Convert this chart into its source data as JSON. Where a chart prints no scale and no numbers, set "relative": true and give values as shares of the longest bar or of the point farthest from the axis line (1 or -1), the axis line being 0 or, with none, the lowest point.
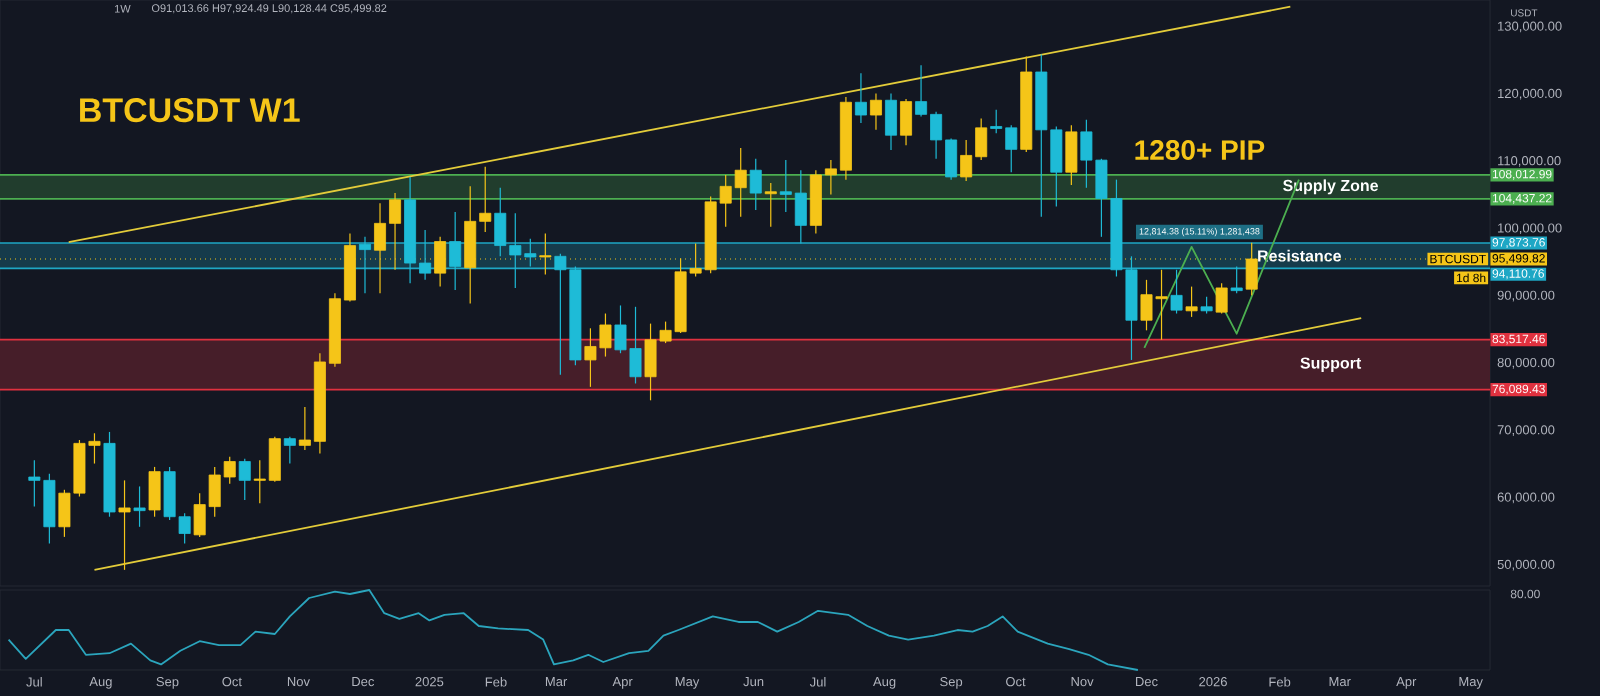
{
  "chart_data": [
    {
      "type": "candlestick",
      "title": "BTCUSDT W1",
      "x": [
        "2024-07-01",
        "2024-07-08",
        "2024-07-15",
        "2024-07-22",
        "2024-07-29",
        "2024-08-05",
        "2024-08-12",
        "2024-08-19",
        "2024-08-26",
        "2024-09-02",
        "2024-09-09",
        "2024-09-16",
        "2024-09-23",
        "2024-09-30",
        "2024-10-07",
        "2024-10-14",
        "2024-10-21",
        "2024-10-28",
        "2024-11-04",
        "2024-11-11",
        "2024-11-18",
        "2024-11-25",
        "2024-12-02",
        "2024-12-09",
        "2024-12-16",
        "2024-12-23",
        "2024-12-30",
        "2025-01-06",
        "2025-01-13",
        "2025-01-20",
        "2025-01-27",
        "2025-02-03",
        "2025-02-10",
        "2025-02-17",
        "2025-02-24",
        "2025-03-03",
        "2025-03-10",
        "2025-03-17",
        "2025-03-24",
        "2025-03-31",
        "2025-04-07",
        "2025-04-14",
        "2025-04-21",
        "2025-04-28",
        "2025-05-05",
        "2025-05-12",
        "2025-05-19",
        "2025-05-26",
        "2025-06-02",
        "2025-06-09",
        "2025-06-16",
        "2025-06-23",
        "2025-06-30",
        "2025-07-07",
        "2025-07-14",
        "2025-07-21",
        "2025-07-28",
        "2025-08-04",
        "2025-08-11",
        "2025-08-18",
        "2025-08-25",
        "2025-09-01",
        "2025-09-08",
        "2025-09-15",
        "2025-09-22",
        "2025-09-29",
        "2025-10-06",
        "2025-10-13",
        "2025-10-20",
        "2025-10-27",
        "2025-11-03",
        "2025-11-10",
        "2025-11-17",
        "2025-11-24",
        "2025-12-01",
        "2025-12-08",
        "2025-12-15",
        "2025-12-22",
        "2025-12-29",
        "2026-01-05",
        "2026-01-12",
        "2026-01-19"
      ],
      "ohlc": [
        [
          63100,
          65600,
          58700,
          62600
        ],
        [
          62600,
          63600,
          53200,
          55700
        ],
        [
          55700,
          61200,
          54200,
          60700
        ],
        [
          60700,
          68600,
          60200,
          68100
        ],
        [
          67800,
          69600,
          65100,
          68400
        ],
        [
          68100,
          69800,
          57200,
          57900
        ],
        [
          57900,
          62600,
          49300,
          58500
        ],
        [
          58500,
          61700,
          55700,
          58100
        ],
        [
          58200,
          64600,
          57200,
          63900
        ],
        [
          63900,
          64600,
          56700,
          57200
        ],
        [
          57200,
          57700,
          53200,
          54700
        ],
        [
          54500,
          60700,
          54200,
          59000
        ],
        [
          58700,
          64600,
          57200,
          63400
        ],
        [
          63100,
          66100,
          62100,
          65400
        ],
        [
          65400,
          65800,
          59700,
          62600
        ],
        [
          62600,
          65600,
          59200,
          62800
        ],
        [
          62600,
          69100,
          62400,
          68800
        ],
        [
          68800,
          69100,
          65100,
          67800
        ],
        [
          67800,
          73500,
          67100,
          68600
        ],
        [
          68400,
          81500,
          66600,
          80200
        ],
        [
          80000,
          90400,
          79500,
          89600
        ],
        [
          89400,
          99300,
          89200,
          97500
        ],
        [
          97700,
          98800,
          90400,
          96900
        ],
        [
          96800,
          103800,
          90400,
          100800
        ],
        [
          100800,
          105300,
          93900,
          104300
        ],
        [
          104300,
          107700,
          91900,
          94900
        ],
        [
          94900,
          99800,
          92400,
          93400
        ],
        [
          93400,
          98800,
          91400,
          98100
        ],
        [
          98100,
          102500,
          90900,
          94400
        ],
        [
          94200,
          106300,
          88900,
          101100
        ],
        [
          101100,
          109200,
          99500,
          102300
        ],
        [
          102300,
          106100,
          95900,
          97500
        ],
        [
          97500,
          102300,
          91200,
          96100
        ],
        [
          96300,
          98500,
          94400,
          95800
        ],
        [
          95800,
          99300,
          93200,
          96000
        ],
        [
          95900,
          96300,
          78300,
          93900
        ],
        [
          93900,
          94400,
          79700,
          80500
        ],
        [
          80500,
          85200,
          76500,
          82500
        ],
        [
          82300,
          87400,
          81000,
          85700
        ],
        [
          85700,
          88600,
          81500,
          82000
        ],
        [
          82200,
          88400,
          77000,
          78000
        ],
        [
          78000,
          85900,
          74500,
          83500
        ],
        [
          83300,
          86200,
          83000,
          84900
        ],
        [
          84700,
          95600,
          84500,
          93600
        ],
        [
          93400,
          97800,
          92900,
          94100
        ],
        [
          93900,
          104800,
          93400,
          104000
        ],
        [
          103800,
          108000,
          100300,
          106300
        ],
        [
          106100,
          112000,
          101800,
          108700
        ],
        [
          108700,
          110400,
          102800,
          105300
        ],
        [
          105200,
          106800,
          100300,
          105500
        ],
        [
          105500,
          110200,
          102500,
          105100
        ],
        [
          105300,
          108700,
          97800,
          100500
        ],
        [
          100500,
          108700,
          99300,
          108000
        ],
        [
          108000,
          110200,
          105100,
          108900
        ],
        [
          108700,
          119600,
          107300,
          118800
        ],
        [
          118800,
          123100,
          115700,
          116900
        ],
        [
          116900,
          120100,
          114700,
          119100
        ],
        [
          119100,
          120100,
          111700,
          113900
        ],
        [
          113900,
          119300,
          112400,
          118900
        ],
        [
          118900,
          124300,
          116700,
          117000
        ],
        [
          117000,
          117400,
          110400,
          113200
        ],
        [
          113200,
          113400,
          107300,
          107700
        ],
        [
          107700,
          113200,
          107100,
          110900
        ],
        [
          110700,
          116400,
          110200,
          115000
        ],
        [
          115200,
          117700,
          114200,
          114900
        ],
        [
          115000,
          115400,
          108400,
          111800
        ],
        [
          111800,
          125600,
          111400,
          123300
        ],
        [
          123300,
          125900,
          101800,
          114700
        ],
        [
          114700,
          115200,
          103300,
          108400
        ],
        [
          108400,
          115400,
          106500,
          114400
        ],
        [
          114400,
          116200,
          106100,
          110200
        ],
        [
          110200,
          110400,
          98800,
          104500
        ],
        [
          104500,
          107300,
          92900,
          93900
        ],
        [
          93900,
          95900,
          80500,
          86400
        ],
        [
          86400,
          92400,
          84900,
          90200
        ],
        [
          89600,
          93900,
          83500,
          89900
        ],
        [
          90100,
          93900,
          87400,
          87900
        ],
        [
          87800,
          91400,
          86900,
          88400
        ],
        [
          88400,
          89900,
          87400,
          87800
        ],
        [
          87600,
          91900,
          87400,
          91200
        ],
        [
          91200,
          94400,
          90400,
          90800
        ],
        [
          91013.66,
          97924.49,
          90128.44,
          95499.82
        ]
      ],
      "colors": [
        "#1ebbd7",
        "#1ebbd7",
        "#f5c518",
        "#f5c518",
        "#f5c518",
        "#1ebbd7",
        "#f5c518",
        "#1ebbd7",
        "#f5c518",
        "#1ebbd7",
        "#1ebbd7",
        "#f5c518",
        "#f5c518",
        "#f5c518",
        "#1ebbd7",
        "#f5c518",
        "#f5c518",
        "#1ebbd7",
        "#f5c518",
        "#f5c518",
        "#f5c518",
        "#f5c518",
        "#1ebbd7",
        "#f5c518",
        "#f5c518",
        "#1ebbd7",
        "#1ebbd7",
        "#f5c518",
        "#1ebbd7",
        "#f5c518",
        "#f5c518",
        "#1ebbd7",
        "#1ebbd7",
        "#1ebbd7",
        "#f5c518",
        "#1ebbd7",
        "#1ebbd7",
        "#f5c518",
        "#f5c518",
        "#1ebbd7",
        "#1ebbd7",
        "#f5c518",
        "#f5c518",
        "#f5c518",
        "#f5c518",
        "#f5c518",
        "#f5c518",
        "#f5c518",
        "#1ebbd7",
        "#f5c518",
        "#1ebbd7",
        "#1ebbd7",
        "#f5c518",
        "#f5c518",
        "#f5c518",
        "#1ebbd7",
        "#f5c518",
        "#1ebbd7",
        "#f5c518",
        "#1ebbd7",
        "#1ebbd7",
        "#1ebbd7",
        "#f5c518",
        "#f5c518",
        "#1ebbd7",
        "#1ebbd7",
        "#f5c518",
        "#1ebbd7",
        "#1ebbd7",
        "#f5c518",
        "#1ebbd7",
        "#1ebbd7",
        "#1ebbd7",
        "#1ebbd7",
        "#f5c518",
        "#f5c518",
        "#1ebbd7",
        "#f5c518",
        "#1ebbd7",
        "#f5c518",
        "#1ebbd7",
        "#f5c518"
      ],
      "series": [
        {
          "type": "line",
          "color": "#e3cc3a",
          "x": [
            "2024-07-17",
            "2026-02-06"
          ],
          "values": [
            98000,
            133000
          ]
        },
        {
          "type": "line",
          "color": "#e3cc3a",
          "x": [
            "2024-07-29",
            "2026-03-11"
          ],
          "values": [
            49300,
            86700
          ]
        },
        {
          "type": "line",
          "color": "#4caf50",
          "x": [
            "2025-11-30",
            "2025-12-22",
            "2026-01-12",
            "2026-02-10"
          ],
          "values": [
            82300,
            97300,
            84400,
            107300
          ]
        }
      ],
      "bands": [
        {
          "axis": "y",
          "from": 104437.22,
          "to": 108012.99,
          "label": "Supply Zone",
          "color": "#213d2d"
        },
        {
          "axis": "y",
          "from": 94110.76,
          "to": 97873.76,
          "label": "Resistance",
          "color": "#163b4b"
        },
        {
          "axis": "y",
          "from": 76089.43,
          "to": 83517.46,
          "label": "Support",
          "color": "#461e29"
        }
      ],
      "ref_lines": [
        {
          "axis": "y",
          "value": 108012.99,
          "label": "108,012.99",
          "color": "#4caf50"
        },
        {
          "axis": "y",
          "value": 104437.22,
          "label": "104,437.22",
          "color": "#4caf50"
        },
        {
          "axis": "y",
          "value": 97873.76,
          "label": "97,873.76",
          "color": "#1ea7c5"
        },
        {
          "axis": "y",
          "value": 95499.82,
          "label": "95,499.82",
          "color": "#f5c518",
          "line_style": "dotted"
        },
        {
          "axis": "y",
          "value": 94110.76,
          "label": "94,110.76",
          "color": "#1ea7c5"
        },
        {
          "axis": "y",
          "value": 83517.46,
          "label": "83,517.46",
          "color": "#e0313f"
        },
        {
          "axis": "y",
          "value": 76089.43,
          "label": "76,089.43",
          "color": "#e0313f"
        }
      ],
      "annotations": [
        "1280+ PIP",
        "12,814.38 (15.11%) 1,281,438",
        "1d 8h",
        "1W",
        "O91,013.66 H97,924.49 L90,128.44 C95,499.82",
        "USDT",
        "BTCUSDT"
      ],
      "xlim": [
        "2024-06-15",
        "2026-05-10"
      ],
      "ylim": [
        46900,
        134000
      ],
      "yticks": [
        {
          "value": 50000,
          "label": "50,000.00"
        },
        {
          "value": 60000,
          "label": "60,000.00"
        },
        {
          "value": 70000,
          "label": "70,000.00"
        },
        {
          "value": 80000,
          "label": "80,000.00"
        },
        {
          "value": 90000,
          "label": "90,000.00"
        },
        {
          "value": 100000,
          "label": "100,000.00"
        },
        {
          "value": 110000,
          "label": "110,000.00"
        },
        {
          "value": 120000,
          "label": "120,000.00"
        },
        {
          "value": 130000,
          "label": "130,000.00"
        }
      ],
      "tick_labels": "y"
    },
    {
      "type": "line",
      "relative": true,
      "color": "#2ba5bd",
      "x": [
        "2024-06-19",
        "2024-06-27",
        "2024-07-11",
        "2024-07-17",
        "2024-07-25",
        "2024-08-05",
        "2024-08-15",
        "2024-08-24",
        "2024-08-29",
        "2024-09-07",
        "2024-09-16",
        "2024-09-25",
        "2024-10-05",
        "2024-10-12",
        "2024-10-21",
        "2024-10-28",
        "2024-11-06",
        "2024-11-18",
        "2024-11-25",
        "2024-12-04",
        "2024-12-11",
        "2024-12-18",
        "2024-12-27",
        "2025-01-01",
        "2025-01-08",
        "2025-01-17",
        "2025-01-24",
        "2025-02-02",
        "2025-02-16",
        "2025-02-23",
        "2025-02-28",
        "2025-03-09",
        "2025-03-16",
        "2025-03-23",
        "2025-04-04",
        "2025-04-13",
        "2025-04-20",
        "2025-04-27",
        "2025-05-13",
        "2025-05-25",
        "2025-06-03",
        "2025-06-12",
        "2025-06-22",
        "2025-07-01",
        "2025-07-15",
        "2025-07-24",
        "2025-08-03",
        "2025-08-12",
        "2025-08-24",
        "2025-09-04",
        "2025-09-11",
        "2025-09-18",
        "2025-09-25",
        "2025-10-02",
        "2025-10-16",
        "2025-10-26",
        "2025-11-04",
        "2025-11-13",
        "2025-11-27"
      ],
      "values": [
        0.38,
        0.14,
        0.5,
        0.5,
        0.19,
        0.21,
        0.33,
        0.12,
        0.07,
        0.24,
        0.36,
        0.31,
        0.31,
        0.48,
        0.45,
        0.67,
        0.9,
        0.98,
        0.95,
        1,
        0.71,
        0.64,
        0.71,
        0.62,
        0.69,
        0.71,
        0.55,
        0.52,
        0.5,
        0.38,
        0.07,
        0.12,
        0.19,
        0.1,
        0.21,
        0.24,
        0.43,
        0.5,
        0.67,
        0.6,
        0.6,
        0.48,
        0.6,
        0.74,
        0.69,
        0.55,
        0.43,
        0.38,
        0.43,
        0.5,
        0.48,
        0.55,
        0.67,
        0.48,
        0.33,
        0.26,
        0.19,
        0.07,
        0
      ],
      "annotations": [
        "80.00"
      ],
      "xlim": [
        "2024-06-15",
        "2026-05-10"
      ],
      "xticks": [
        {
          "value": "2024-07-01",
          "label": "Jul"
        },
        {
          "value": "2024-08-01",
          "label": "Aug"
        },
        {
          "value": "2024-09-01",
          "label": "Sep"
        },
        {
          "value": "2024-10-01",
          "label": "Oct"
        },
        {
          "value": "2024-11-01",
          "label": "Nov"
        },
        {
          "value": "2024-12-01",
          "label": "Dec"
        },
        {
          "value": "2025-01-01",
          "label": "2025"
        },
        {
          "value": "2025-02-01",
          "label": "Feb"
        },
        {
          "value": "2025-03-01",
          "label": "Mar"
        },
        {
          "value": "2025-04-01",
          "label": "Apr"
        },
        {
          "value": "2025-05-01",
          "label": "May"
        },
        {
          "value": "2025-06-01",
          "label": "Jun"
        },
        {
          "value": "2025-07-01",
          "label": "Jul"
        },
        {
          "value": "2025-08-01",
          "label": "Aug"
        },
        {
          "value": "2025-09-01",
          "label": "Sep"
        },
        {
          "value": "2025-10-01",
          "label": "Oct"
        },
        {
          "value": "2025-11-01",
          "label": "Nov"
        },
        {
          "value": "2025-12-01",
          "label": "Dec"
        },
        {
          "value": "2026-01-01",
          "label": "2026"
        },
        {
          "value": "2026-02-01",
          "label": "Feb"
        },
        {
          "value": "2026-03-01",
          "label": "Mar"
        },
        {
          "value": "2026-04-01",
          "label": "Apr"
        },
        {
          "value": "2026-05-01",
          "label": "May"
        }
      ],
      "tick_labels": "x"
    }
  ]
}
